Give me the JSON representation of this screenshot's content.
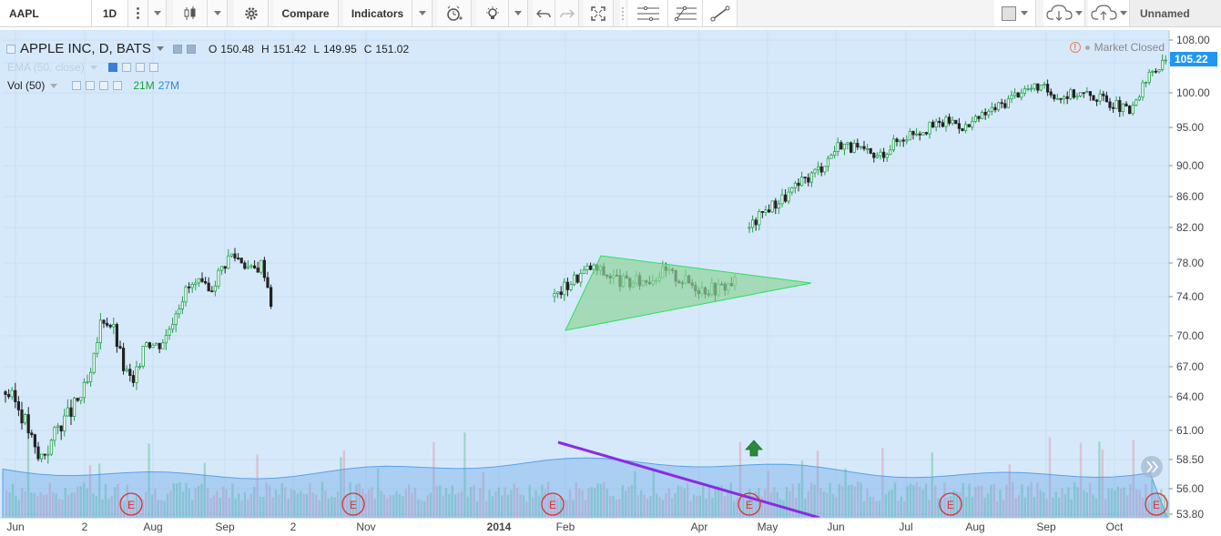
{
  "toolbar": {
    "symbol": "AAPL",
    "interval": "1D",
    "compare_label": "Compare",
    "indicators_label": "Indicators",
    "layout_name": "Unnamed"
  },
  "legend": {
    "title": "APPLE INC, D, BATS",
    "o_label": "O",
    "o_value": "150.48",
    "h_label": "H",
    "h_value": "151.42",
    "l_label": "L",
    "l_value": "149.95",
    "c_label": "C",
    "c_value": "151.02",
    "ema_label": "EMA (50, close)",
    "vol_label": "Vol (50)",
    "vol_value1": "21M",
    "vol_value2": "27M"
  },
  "status": {
    "market": "Market Closed",
    "last_price": "105.22"
  },
  "colors": {
    "background": "#d6e9fb",
    "up": "#24a148",
    "down": "#222222",
    "price_badge": "#2196f3",
    "triangle_fill": "#8fd39a",
    "trendline": "#8a2be2",
    "earnings": "#e03030"
  },
  "chart_data": {
    "type": "candlestick",
    "title": "APPLE INC, D, BATS",
    "y_ticks": [
      "108.00",
      "105.00",
      "100.00",
      "95.00",
      "90.00",
      "86.00",
      "82.00",
      "78.00",
      "74.00",
      "70.00",
      "67.00",
      "64.00",
      "61.00",
      "58.50",
      "56.00",
      "53.80"
    ],
    "x_ticks": [
      "Jun",
      "2",
      "Aug",
      "Sep",
      "2",
      "Nov",
      "2014",
      "Feb",
      "Apr",
      "May",
      "Jun",
      "Jul",
      "Aug",
      "Sep",
      "Oct"
    ],
    "earnings_label": "E",
    "earnings_count": 6,
    "series": [
      {
        "name": "APPLE INC",
        "type": "candlestick",
        "path_close": [
          64.5,
          63.5,
          61.5,
          58.5,
          59.5,
          61.5,
          62.5,
          64,
          66,
          72,
          71,
          67,
          65,
          70,
          69,
          70,
          73,
          75,
          75.5,
          74.5,
          77,
          79,
          78.5,
          77,
          78,
          72.5,
          74,
          76,
          77.5,
          76.5,
          75.5,
          76,
          77,
          76,
          75,
          75,
          76,
          82,
          84.5,
          86,
          88,
          90,
          93,
          92,
          91,
          93,
          94.5,
          95,
          96,
          95,
          97,
          98.5,
          100.5,
          101,
          99.5,
          100,
          99.5,
          98.5,
          97,
          103,
          105.2
        ]
      },
      {
        "name": "Vol (50)",
        "type": "bar"
      }
    ]
  }
}
